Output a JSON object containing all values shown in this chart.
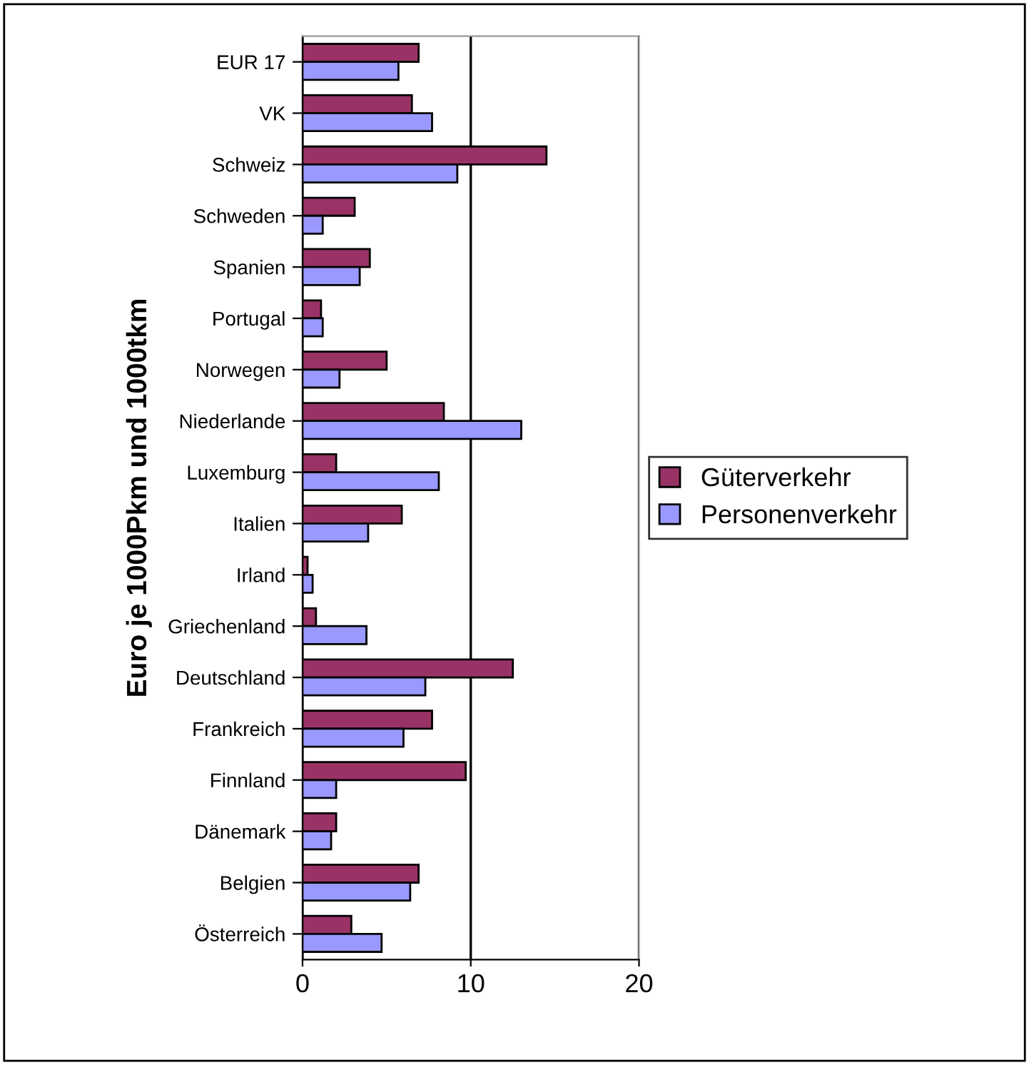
{
  "chart_data": {
    "type": "bar",
    "orientation": "horizontal",
    "ylabel": "Euro je 1000Pkm und 1000tkm",
    "categories": [
      "EUR 17",
      "VK",
      "Schweiz",
      "Schweden",
      "Spanien",
      "Portugal",
      "Norwegen",
      "Niederlande",
      "Luxemburg",
      "Italien",
      "Irland",
      "Griechenland",
      "Deutschland",
      "Frankreich",
      "Finnland",
      "Dänemark",
      "Belgien",
      "Österreich"
    ],
    "series": [
      {
        "name": "Güterverkehr",
        "color": "#993366",
        "values": [
          6.9,
          6.5,
          14.5,
          3.1,
          4.0,
          1.1,
          5.0,
          8.4,
          2.0,
          5.9,
          0.3,
          0.8,
          12.5,
          7.7,
          9.7,
          2.0,
          6.9,
          2.9
        ]
      },
      {
        "name": "Personenverkehr",
        "color": "#9999ff",
        "values": [
          5.7,
          7.7,
          9.2,
          1.2,
          3.4,
          1.2,
          2.2,
          13.0,
          8.1,
          3.9,
          0.6,
          3.8,
          7.3,
          6.0,
          2.0,
          1.7,
          6.4,
          4.7
        ]
      }
    ],
    "xlim": [
      0,
      20
    ],
    "xticks": [
      0,
      10,
      20
    ],
    "grid": "x",
    "legend": "right"
  }
}
